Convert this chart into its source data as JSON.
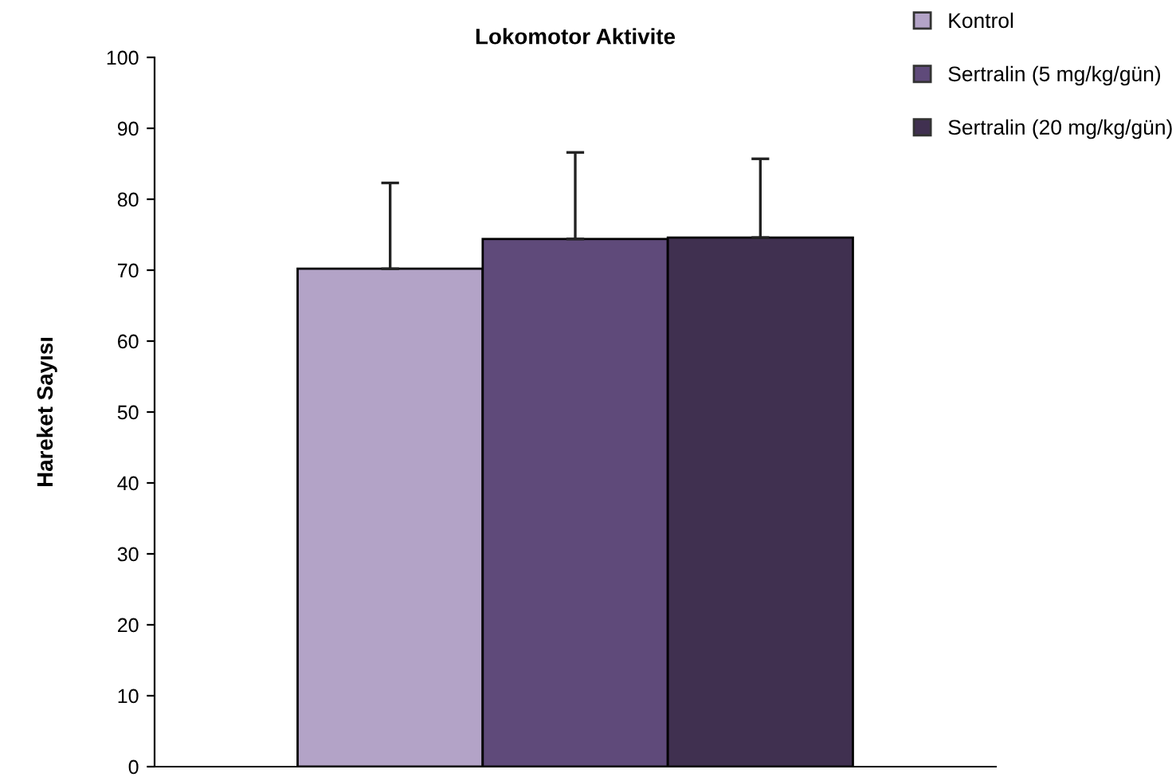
{
  "chart_data": {
    "type": "bar",
    "title": "Lokomotor Aktivite",
    "ylabel": "Hareket Sayısı",
    "categories": [
      null
    ],
    "series": [
      {
        "name": "Kontrol",
        "color": "#b3a3c7",
        "values": [
          70.2
        ],
        "errors": [
          [
            70.2,
            82.3
          ]
        ]
      },
      {
        "name": "Sertralin (5 mg/kg/gün)",
        "color": "#5f4a7a",
        "values": [
          74.4
        ],
        "errors": [
          [
            74.4,
            86.6
          ]
        ]
      },
      {
        "name": "Sertralin (20 mg/kg/gün)",
        "color": "#403050",
        "values": [
          74.6
        ],
        "errors": [
          [
            74.6,
            85.7
          ]
        ]
      }
    ],
    "ylim": [
      0,
      100
    ],
    "yticks": [
      0,
      10,
      20,
      30,
      40,
      50,
      60,
      70,
      80,
      90,
      100
    ],
    "grid": false,
    "legend": "top right"
  }
}
